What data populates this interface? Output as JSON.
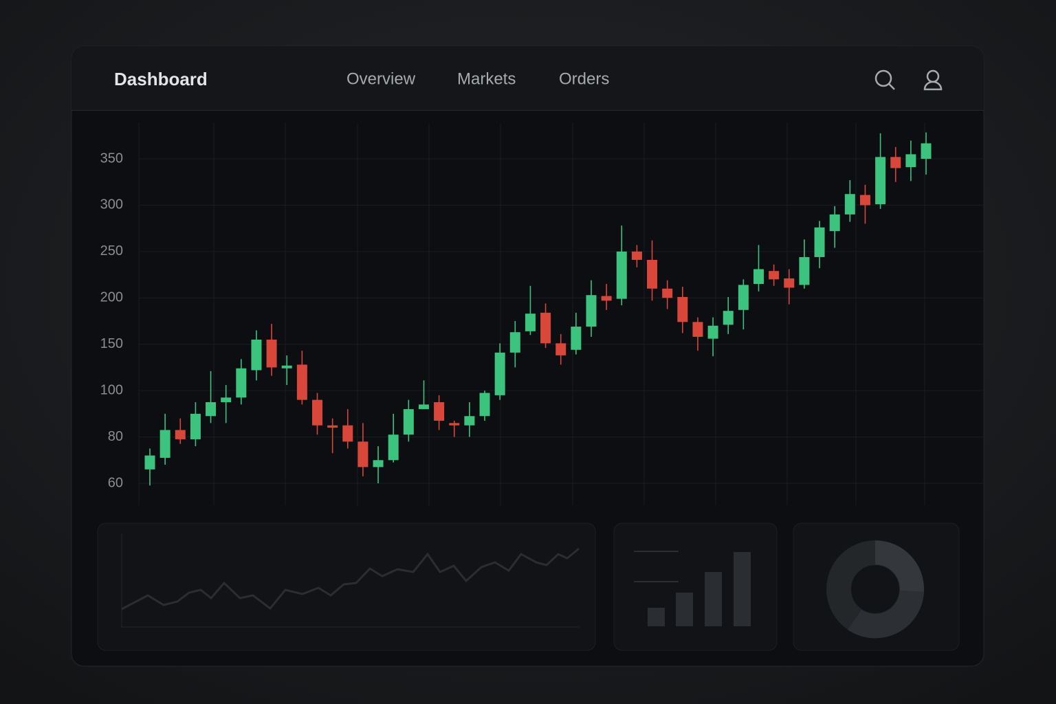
{
  "header": {
    "title": "Dashboard",
    "nav": [
      "Overview",
      "Markets",
      "Orders"
    ]
  },
  "chart_data": {
    "type": "candlestick",
    "open": [
      66,
      71,
      83,
      79,
      89,
      95,
      97,
      122,
      155,
      124,
      128,
      96,
      85,
      85,
      78,
      67,
      70,
      81,
      92,
      95,
      86,
      85,
      89,
      98,
      141,
      164,
      184,
      151,
      144,
      169,
      202,
      199,
      250,
      241,
      210,
      201,
      174,
      156,
      171,
      187,
      215,
      229,
      221,
      214,
      244,
      272,
      290,
      311,
      301,
      352,
      341,
      350
    ],
    "close": [
      72,
      83,
      79,
      90,
      95,
      97,
      124,
      155,
      125,
      127,
      96,
      85,
      84,
      78,
      67,
      70,
      81,
      92,
      94,
      87,
      85,
      89,
      99,
      141,
      163,
      183,
      151,
      138,
      169,
      203,
      197,
      250,
      241,
      210,
      200,
      174,
      158,
      170,
      186,
      214,
      231,
      220,
      211,
      244,
      276,
      290,
      312,
      300,
      352,
      340,
      355,
      367
    ],
    "high": [
      75,
      90,
      88,
      95,
      121,
      106,
      134,
      165,
      172,
      138,
      143,
      99,
      88,
      92,
      86,
      76,
      90,
      96,
      111,
      98,
      87,
      95,
      100,
      151,
      175,
      213,
      194,
      161,
      184,
      219,
      215,
      278,
      257,
      262,
      219,
      212,
      179,
      179,
      201,
      220,
      257,
      236,
      231,
      263,
      283,
      299,
      327,
      322,
      378,
      363,
      370,
      379
    ],
    "low": [
      59,
      68,
      77,
      76,
      86,
      86,
      94,
      111,
      116,
      106,
      94,
      81,
      73,
      75,
      63,
      60,
      69,
      78,
      92,
      83,
      80,
      80,
      87,
      96,
      125,
      160,
      146,
      128,
      139,
      158,
      187,
      192,
      233,
      197,
      188,
      162,
      143,
      137,
      161,
      166,
      207,
      213,
      193,
      210,
      232,
      254,
      282,
      280,
      296,
      325,
      326,
      333
    ],
    "up_color": "#3cc47f",
    "down_color": "#d9473b",
    "ylim": [
      50,
      390
    ],
    "yticks": [
      60,
      80,
      100,
      150,
      200,
      250,
      300,
      350
    ],
    "grid": true
  }
}
